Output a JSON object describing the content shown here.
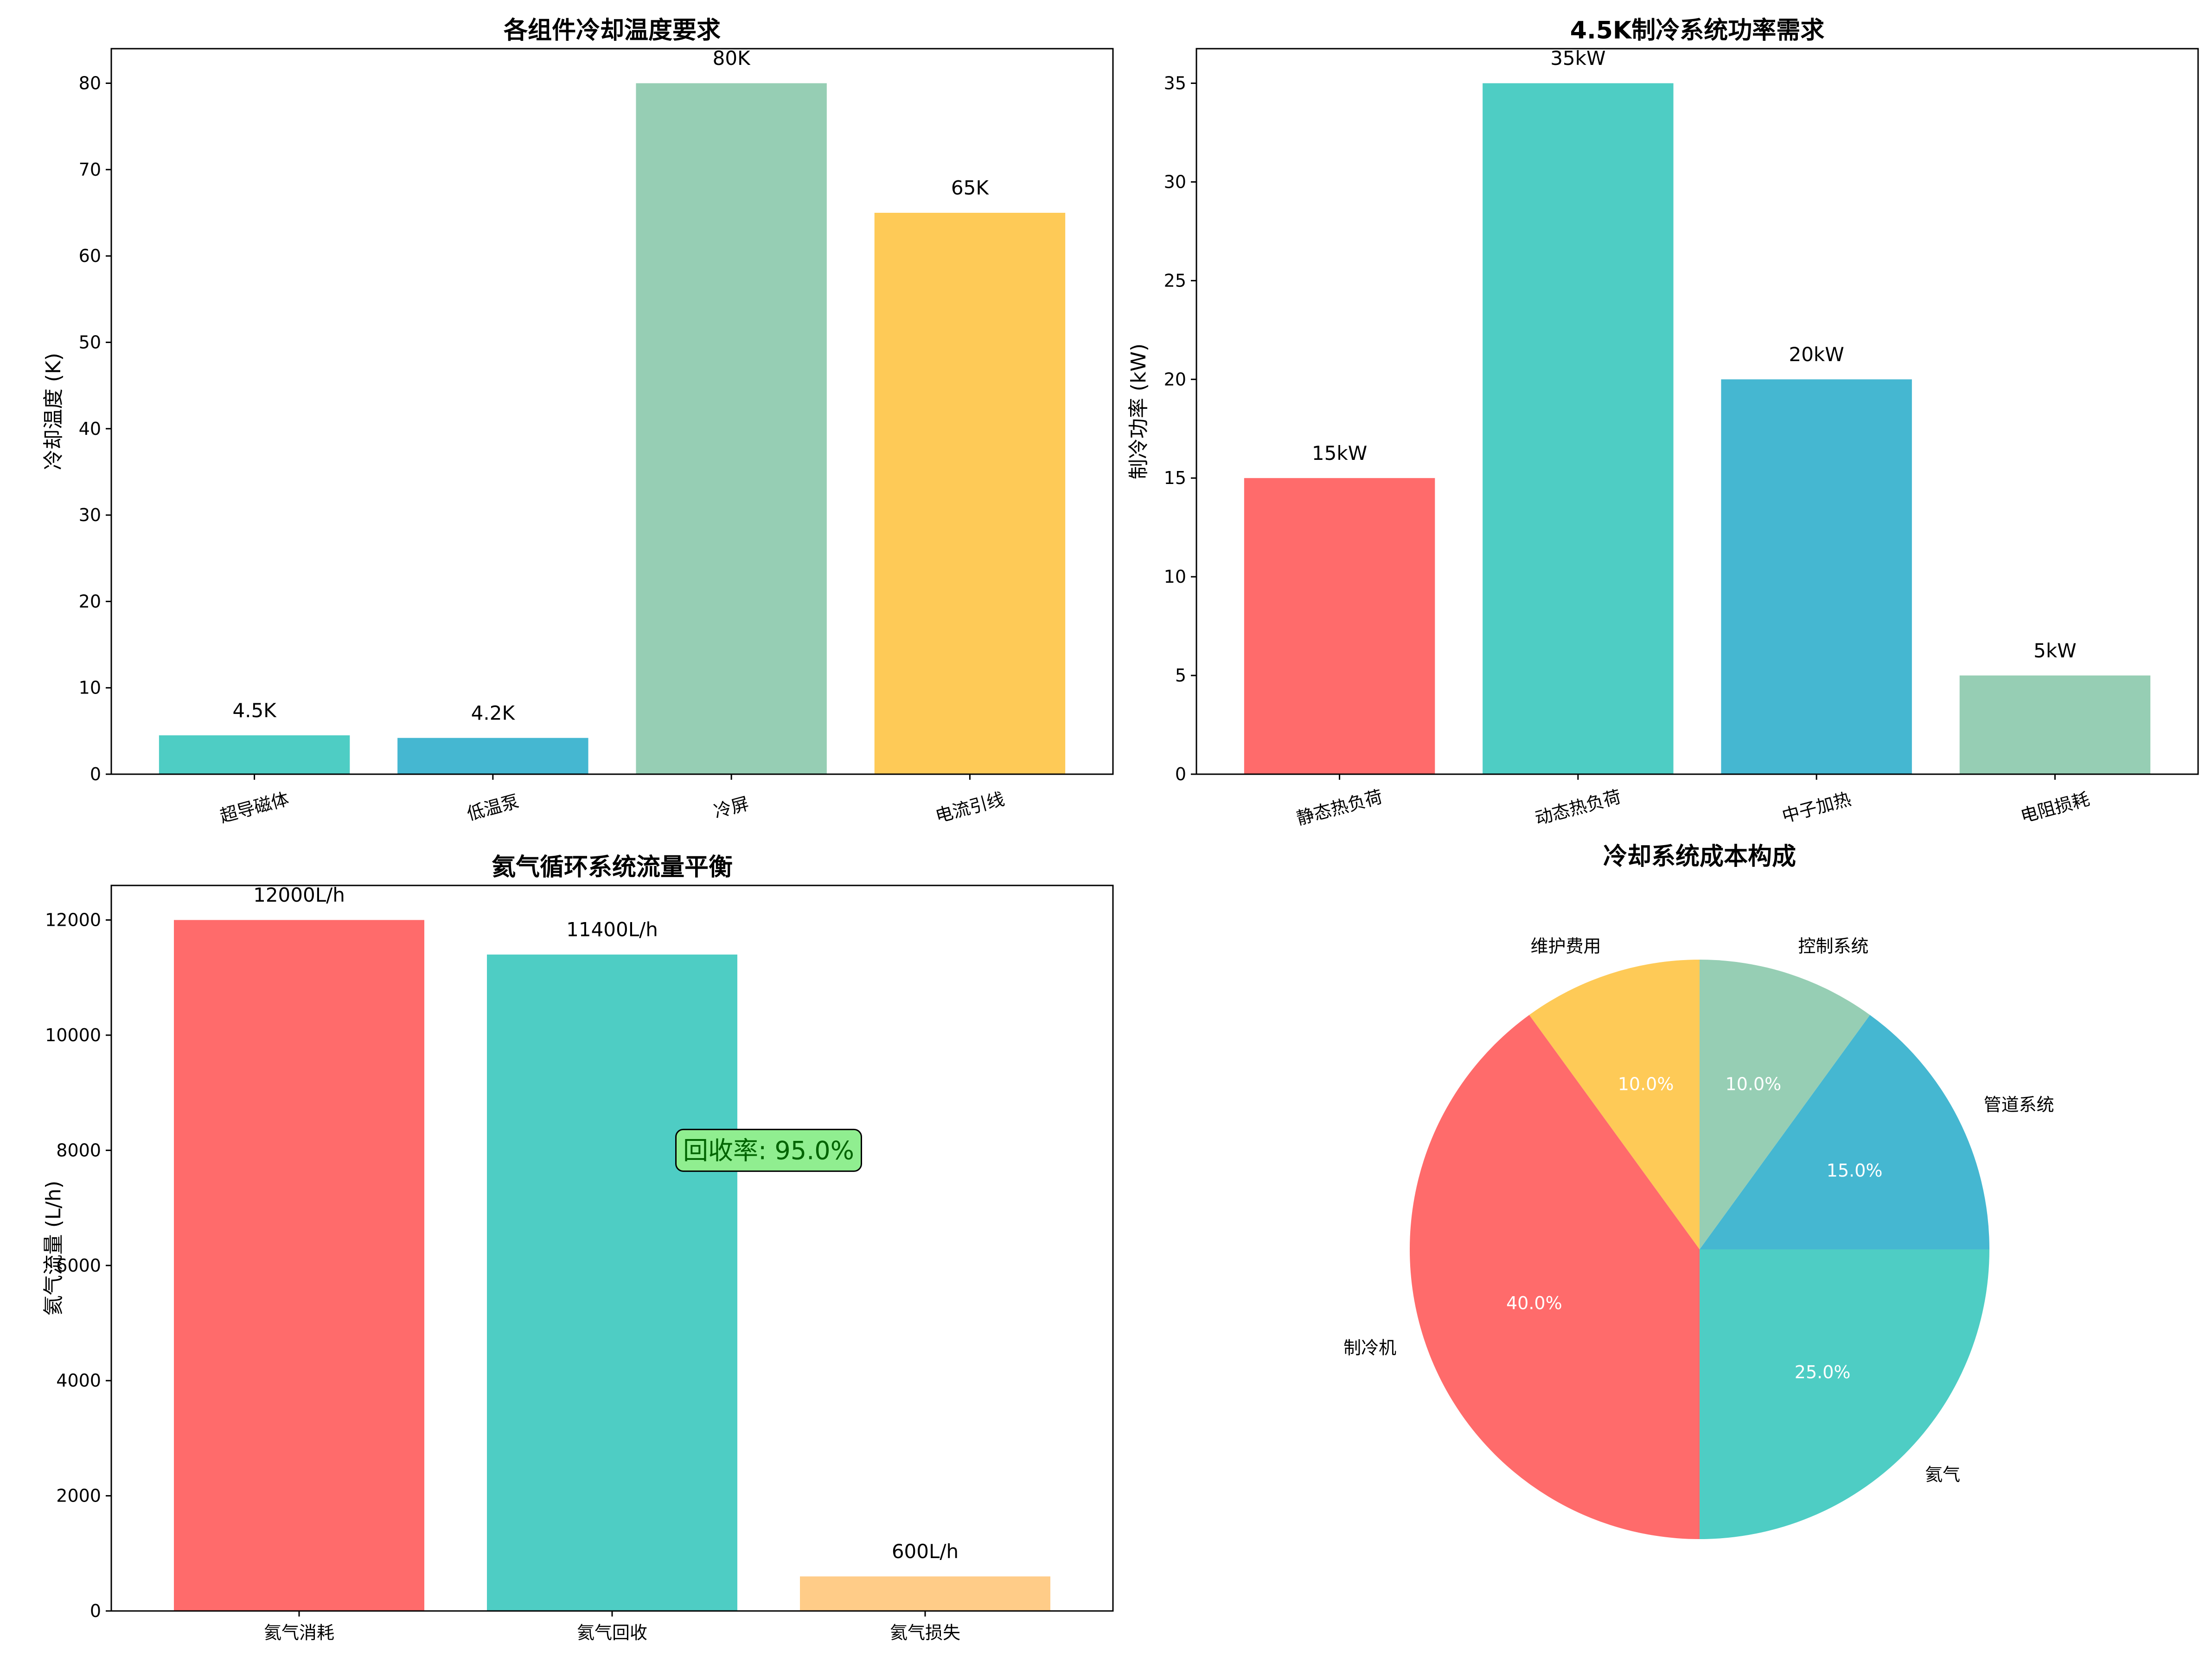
{
  "chart_data": [
    {
      "type": "bar",
      "title": "各组件冷却温度要求",
      "xlabel": "",
      "ylabel": "冷却温度 (K)",
      "categories": [
        "超导磁体",
        "低温泵",
        "冷屏",
        "电流引线"
      ],
      "values": [
        4.5,
        4.2,
        80,
        65
      ],
      "value_labels": [
        "4.5K",
        "4.2K",
        "80K",
        "65K"
      ],
      "colors": [
        "#4ecdc4",
        "#45b7d1",
        "#96ceb4",
        "#feca57"
      ],
      "ylim": [
        0,
        84
      ],
      "yticks": [
        0,
        10,
        20,
        30,
        40,
        50,
        60,
        70,
        80
      ],
      "ytick_labels": [
        "0",
        "10",
        "20",
        "30",
        "40",
        "50",
        "60",
        "70",
        "80"
      ],
      "rotate_categories": true
    },
    {
      "type": "bar",
      "title": "4.5K制冷系统功率需求",
      "xlabel": "",
      "ylabel": "制冷功率 (kW)",
      "categories": [
        "静态热负荷",
        "动态热负荷",
        "中子加热",
        "电阻损耗"
      ],
      "values": [
        15,
        35,
        20,
        5
      ],
      "value_labels": [
        "15kW",
        "35kW",
        "20kW",
        "5kW"
      ],
      "colors": [
        "#ff6b6b",
        "#4ecdc4",
        "#45b7d1",
        "#96ceb4"
      ],
      "ylim": [
        0,
        36.75
      ],
      "yticks": [
        0,
        5,
        10,
        15,
        20,
        25,
        30,
        35
      ],
      "ytick_labels": [
        "0",
        "5",
        "10",
        "15",
        "20",
        "25",
        "30",
        "35"
      ],
      "rotate_categories": true
    },
    {
      "type": "bar",
      "title": "氦气循环系统流量平衡",
      "xlabel": "",
      "ylabel": "氦气流量 (L/h)",
      "categories": [
        "氦气消耗",
        "氦气回收",
        "氦气损失"
      ],
      "values": [
        12000,
        11400,
        600
      ],
      "value_labels": [
        "12000L/h",
        "11400L/h",
        "600L/h"
      ],
      "colors": [
        "#ff6b6b",
        "#4ecdc4",
        "#ffcc88"
      ],
      "ylim": [
        0,
        12600
      ],
      "yticks": [
        0,
        2000,
        4000,
        6000,
        8000,
        10000,
        12000
      ],
      "ytick_labels": [
        "0",
        "2000",
        "4000",
        "6000",
        "8000",
        "10000",
        "12000"
      ],
      "rotate_categories": false,
      "annotation": {
        "text": "回收率: 95.0%",
        "x_category_pos": 1.5,
        "y": 8000,
        "bg": "#90ee90",
        "color": "#006400"
      }
    },
    {
      "type": "pie",
      "title": "冷却系统成本构成",
      "labels": [
        "维护费用",
        "制冷机",
        "氦气",
        "管道系统",
        "控制系统"
      ],
      "values": [
        10,
        40,
        25,
        15,
        10
      ],
      "pct_labels": [
        "10.0%",
        "40.0%",
        "25.0%",
        "15.0%",
        "10.0%"
      ],
      "colors": [
        "#feca57",
        "#ff6b6b",
        "#4ecdc4",
        "#45b7d1",
        "#96ceb4"
      ],
      "start_angle_deg": 90,
      "direction": "counterclockwise"
    }
  ]
}
